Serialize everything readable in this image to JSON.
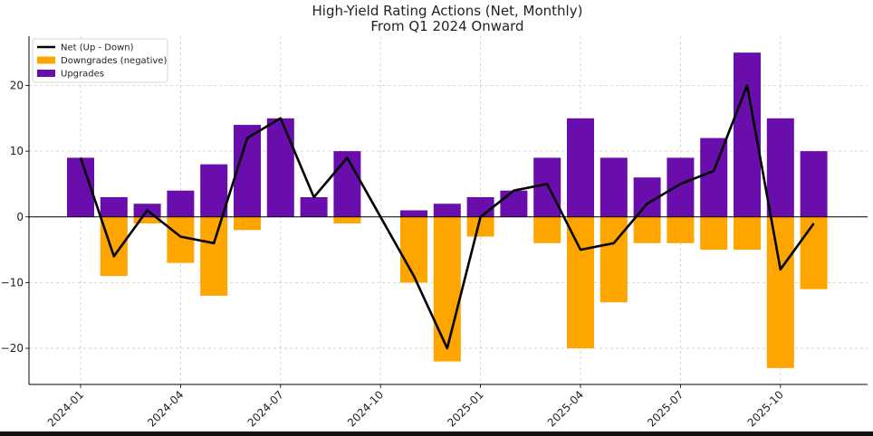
{
  "chart_data": {
    "type": "bar",
    "title": "High-Yield Rating Actions (Net, Monthly)",
    "subtitle": "From Q1 2024 Onward",
    "xlabel": "",
    "ylabel": "",
    "ylim": [
      -25.5,
      27.5
    ],
    "yticks": [
      -20,
      -10,
      0,
      10,
      20
    ],
    "ytick_labels": [
      "−20",
      "−10",
      "0",
      "10",
      "20"
    ],
    "xticks": [
      "2024-01",
      "2024-04",
      "2024-07",
      "2024-10",
      "2025-01",
      "2025-04",
      "2025-07",
      "2025-10"
    ],
    "grid": true,
    "legend_position": "top-left",
    "months": [
      "2024-01",
      "2024-02",
      "2024-03",
      "2024-04",
      "2024-05",
      "2024-06",
      "2024-07",
      "2024-08",
      "2024-09",
      "2024-10",
      "2024-11",
      "2024-12",
      "2025-01",
      "2025-02",
      "2025-03",
      "2025-04",
      "2025-05",
      "2025-06",
      "2025-07",
      "2025-08",
      "2025-09",
      "2025-10",
      "2025-11"
    ],
    "series": [
      {
        "name": "Net (Up - Down)",
        "kind": "line",
        "color": "#000000",
        "values": [
          9,
          -6,
          1,
          -3,
          -4,
          12,
          15,
          3,
          9,
          0,
          -9,
          -20,
          0,
          4,
          5,
          -5,
          -4,
          2,
          5,
          7,
          20,
          -8,
          -1
        ]
      },
      {
        "name": "Downgrades (negative)",
        "kind": "bar",
        "color": "#FFA500",
        "values": [
          0,
          -9,
          -1,
          -7,
          -12,
          -2,
          0,
          0,
          -1,
          0,
          -10,
          -22,
          -3,
          0,
          -4,
          -20,
          -13,
          -4,
          -4,
          -5,
          -5,
          -23,
          -11
        ]
      },
      {
        "name": "Upgrades",
        "kind": "bar",
        "color": "#6A0DAD",
        "values": [
          9,
          3,
          2,
          4,
          8,
          14,
          15,
          3,
          10,
          0,
          1,
          2,
          3,
          4,
          9,
          15,
          9,
          6,
          9,
          12,
          25,
          15,
          10
        ]
      }
    ]
  }
}
